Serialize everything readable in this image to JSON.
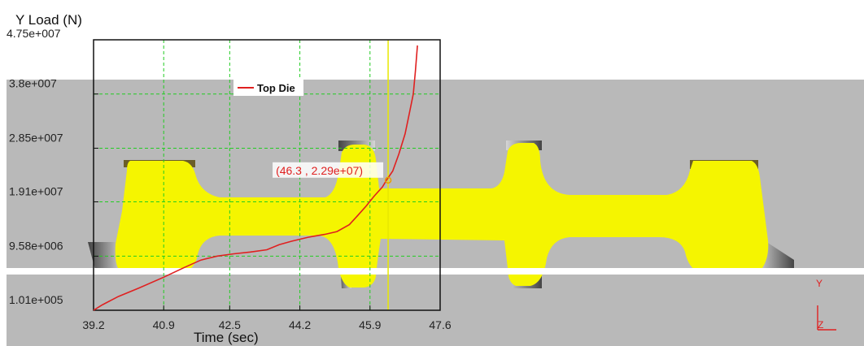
{
  "chart_data": {
    "type": "line",
    "title": "Y Load (N)",
    "xlabel": "Time (sec)",
    "ylabel": "Y Load (N)",
    "xlim": [
      39.2,
      47.6
    ],
    "ylim": [
      101000,
      47500000
    ],
    "x_ticks": [
      39.2,
      40.9,
      42.5,
      44.2,
      45.9,
      47.6
    ],
    "x_tick_labels": [
      "39.2",
      "40.9",
      "42.5",
      "44.2",
      "45.9",
      "47.6"
    ],
    "y_ticks": [
      101000,
      9580000,
      19100000,
      28500000,
      38000000,
      47500000
    ],
    "y_tick_labels": [
      "1.01e+005",
      "9.58e+006",
      "1.91e+007",
      "2.85e+007",
      "3.8e+007",
      "4.75e+007"
    ],
    "grid": true,
    "legend_position": "top",
    "series": [
      {
        "name": "Top Die",
        "color": "#e02020",
        "x": [
          39.2,
          39.4,
          39.8,
          40.3,
          40.9,
          41.4,
          41.8,
          42.2,
          42.6,
          43.0,
          43.4,
          43.7,
          44.0,
          44.4,
          44.8,
          45.1,
          45.4,
          45.6,
          45.8,
          46.0,
          46.2,
          46.3,
          46.45,
          46.6,
          46.75,
          46.85,
          46.95,
          47.0,
          47.05
        ],
        "values": [
          101000,
          1000000,
          2500000,
          4000000,
          5900000,
          7600000,
          8900000,
          9600000,
          10000000,
          10300000,
          10700000,
          11600000,
          12200000,
          12900000,
          13400000,
          13900000,
          15100000,
          16700000,
          18300000,
          20100000,
          21700000,
          22900000,
          24500000,
          27500000,
          31000000,
          34500000,
          38000000,
          42000000,
          46500000
        ]
      }
    ],
    "cursor": {
      "x": 46.3,
      "y": 22900000,
      "label": "(46.3 , 2.29e+07)"
    }
  },
  "triad": {
    "y_label": "Y",
    "z_label": "Z"
  },
  "colors": {
    "background_panel": "#b9b9b9",
    "part_fill": "#f5f500",
    "die_dark": "#5f5f5f",
    "grid": "#22cc22",
    "cursor_line": "#e8e800",
    "series": "#e02020"
  }
}
